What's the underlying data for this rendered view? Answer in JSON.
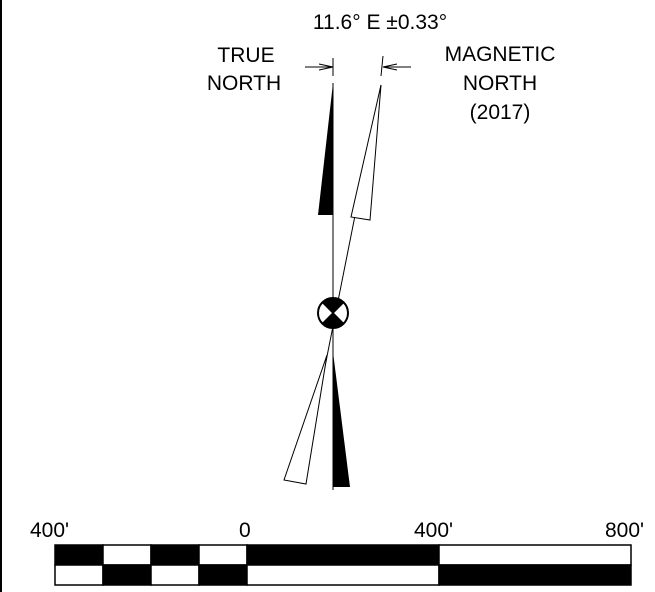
{
  "declination": "11.6° E ±0.33°",
  "true_north": {
    "line1": "TRUE",
    "line2": "NORTH"
  },
  "magnetic_north": {
    "line1": "MAGNETIC",
    "line2": "NORTH",
    "line3": "(2017)"
  },
  "scale_labels": [
    "400'",
    "0",
    "400'",
    "800'"
  ],
  "colors": {
    "ink": "#000000",
    "paper": "#ffffff"
  }
}
